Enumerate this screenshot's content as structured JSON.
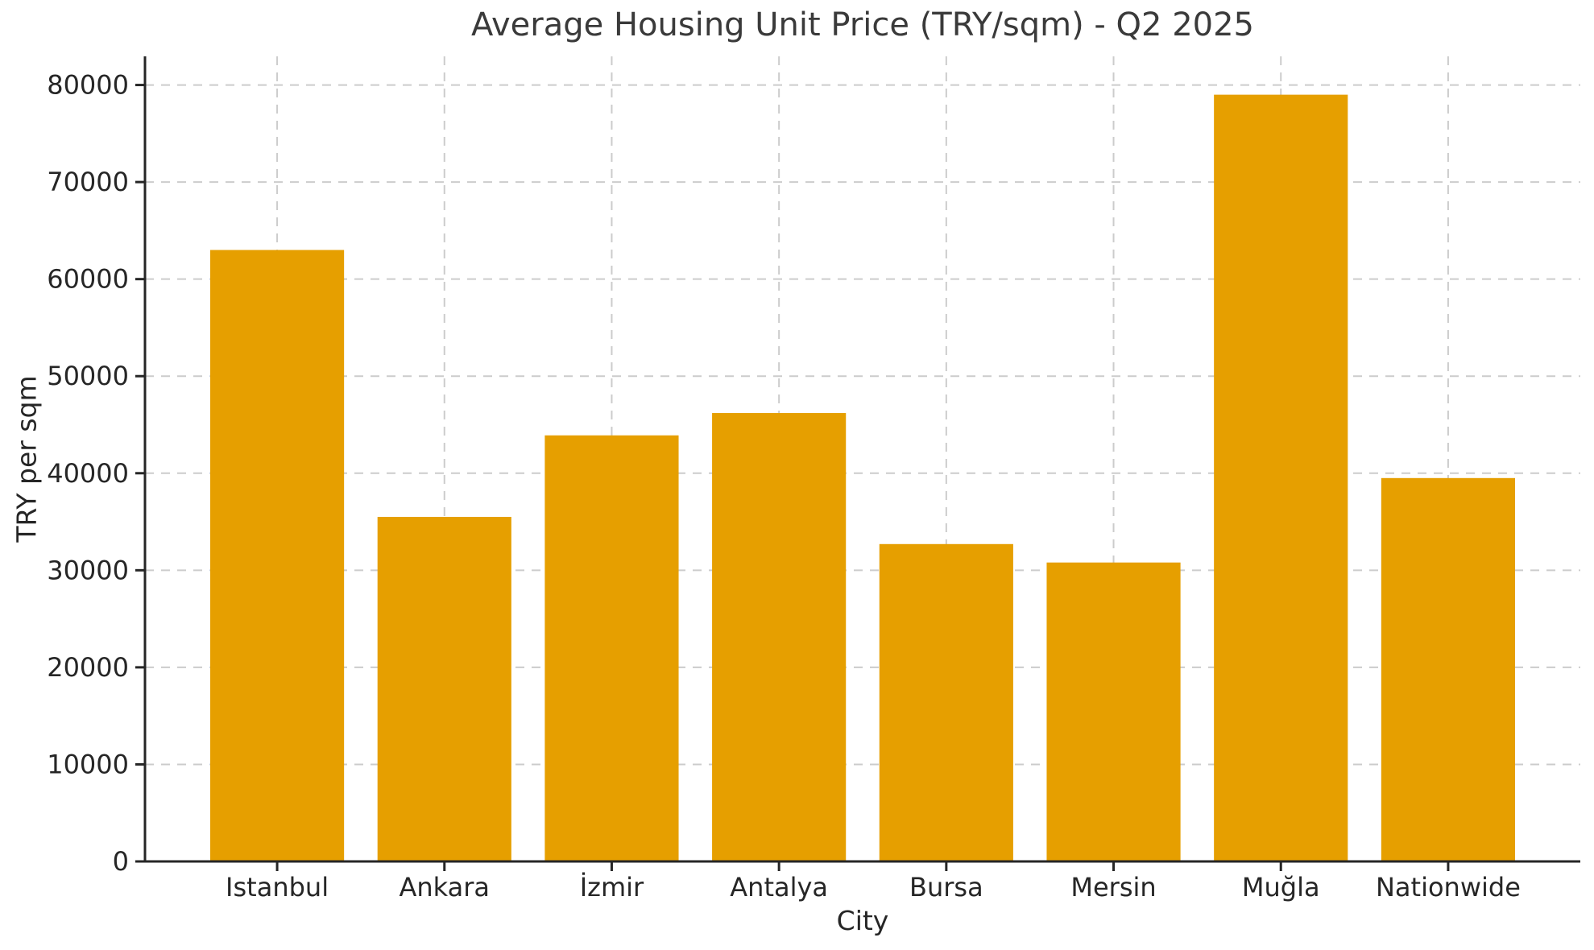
{
  "chart_data": {
    "type": "bar",
    "title": "Average Housing Unit Price (TRY/sqm) - Q2 2025",
    "xlabel": "City",
    "ylabel": "TRY per sqm",
    "categories": [
      "Istanbul",
      "Ankara",
      "İzmir",
      "Antalya",
      "Bursa",
      "Mersin",
      "Muğla",
      "Nationwide"
    ],
    "values": [
      63000,
      35500,
      43900,
      46200,
      32700,
      30800,
      79000,
      39500
    ],
    "ylim": [
      0,
      82950
    ],
    "yticks": [
      0,
      10000,
      20000,
      30000,
      40000,
      50000,
      60000,
      70000,
      80000
    ],
    "grid": "on",
    "grid_style": "dashed",
    "legend": "none",
    "bar_color": "#E69F00",
    "grid_color": "#cccccc",
    "axis_color": "#262626",
    "title_color": "#3a3a3a"
  }
}
